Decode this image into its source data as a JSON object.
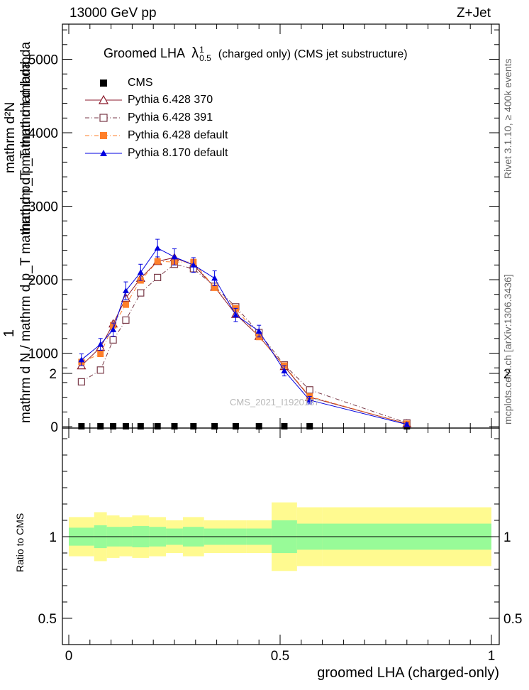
{
  "header": {
    "left": "13000 GeV pp",
    "right": "Z+Jet"
  },
  "side": {
    "rivet": "Rivet 3.1.10, ≥ 400k events",
    "mcplots": "mcplots.cern.ch [arXiv:1306.3436]"
  },
  "watermark": "CMS_2021_I1920187",
  "chart_data": [
    {
      "type": "line",
      "title": "Groomed LHA  λ¹₀.₅  (charged only) (CMS jet substructure)",
      "title_parts": {
        "main": "Groomed LHA",
        "sym": "λ",
        "sup": "1",
        "sub": "0.5",
        "rest": "(charged only) (CMS jet substructure)"
      },
      "ylabel_top": "mathrm d²N",
      "ylabel_top2": "mathrm d p_T mathrm d lambda",
      "ylabel_bottom": "mathrm d N / mathrm d p_T mathrm d p_T mathrm d lambda",
      "ylabel_one": "1",
      "xlim": [
        0,
        1
      ],
      "ylim": [
        0,
        5400
      ],
      "yticks": [
        0,
        1000,
        2000,
        3000,
        4000,
        5000
      ],
      "ytick_labels": [
        "0",
        "1000",
        "2000",
        "3000",
        "4000",
        "5000"
      ],
      "legend_position": "top-left",
      "x": [
        0.03,
        0.075,
        0.105,
        0.135,
        0.17,
        0.21,
        0.25,
        0.295,
        0.345,
        0.395,
        0.45,
        0.51,
        0.57,
        0.8
      ],
      "series": [
        {
          "name": "CMS",
          "color": "#000000",
          "marker": "square-filled",
          "values": [
            5,
            5,
            5,
            5,
            5,
            5,
            5,
            5,
            5,
            5,
            5,
            5,
            5,
            5
          ]
        },
        {
          "name": "Pythia 6.428 370",
          "color": "#8b1a2b",
          "marker": "triangle-open",
          "dash": "solid",
          "values": [
            830,
            1080,
            1400,
            1750,
            2020,
            2250,
            2300,
            2200,
            1900,
            1530,
            1230,
            820,
            400,
            40
          ]
        },
        {
          "name": "Pythia 6.428 391",
          "color": "#7a3a48",
          "marker": "square-open",
          "dash": "dashdot",
          "values": [
            610,
            770,
            1180,
            1450,
            1820,
            2030,
            2210,
            2150,
            1910,
            1630,
            1280,
            840,
            500,
            50
          ]
        },
        {
          "name": "Pythia 6.428 default",
          "color": "#ff7f2a",
          "marker": "square-filled",
          "dash": "dashdot",
          "values": [
            880,
            990,
            1380,
            1660,
            1990,
            2250,
            2240,
            2240,
            1890,
            1610,
            1220,
            830,
            410,
            40
          ]
        },
        {
          "name": "Pythia 8.170 default",
          "color": "#0000e0",
          "marker": "triangle-filled",
          "dash": "solid",
          "values": [
            910,
            1120,
            1320,
            1850,
            2100,
            2430,
            2310,
            2200,
            2020,
            1520,
            1300,
            760,
            360,
            30
          ],
          "errors": [
            80,
            80,
            90,
            120,
            110,
            120,
            110,
            100,
            100,
            90,
            80,
            70,
            50,
            20
          ]
        }
      ]
    },
    {
      "type": "area",
      "ylabel": "Ratio to CMS",
      "xlabel": "groomed LHA (charged-only)",
      "xlim": [
        0,
        1
      ],
      "ylim": [
        0.3,
        2.3
      ],
      "yticks": [
        0.5,
        1,
        2
      ],
      "ytick_labels": [
        "0.5",
        "1",
        "2"
      ],
      "xtick_labels": [
        "0",
        "0.5",
        "1"
      ],
      "bin_edges": [
        0.0,
        0.06,
        0.09,
        0.12,
        0.15,
        0.19,
        0.23,
        0.27,
        0.32,
        0.37,
        0.42,
        0.48,
        0.54,
        0.6,
        1.0
      ],
      "band_inner": [
        [
          0.945,
          1.055
        ],
        [
          0.93,
          1.07
        ],
        [
          0.94,
          1.06
        ],
        [
          0.94,
          1.06
        ],
        [
          0.935,
          1.065
        ],
        [
          0.94,
          1.06
        ],
        [
          0.95,
          1.05
        ],
        [
          0.94,
          1.06
        ],
        [
          0.95,
          1.05
        ],
        [
          0.95,
          1.05
        ],
        [
          0.95,
          1.05
        ],
        [
          0.9,
          1.1
        ],
        [
          0.92,
          1.08
        ],
        [
          0.92,
          1.08
        ]
      ],
      "band_outer": [
        [
          0.88,
          1.12
        ],
        [
          0.85,
          1.15
        ],
        [
          0.87,
          1.13
        ],
        [
          0.88,
          1.12
        ],
        [
          0.87,
          1.13
        ],
        [
          0.88,
          1.12
        ],
        [
          0.9,
          1.1
        ],
        [
          0.88,
          1.12
        ],
        [
          0.9,
          1.1
        ],
        [
          0.9,
          1.1
        ],
        [
          0.9,
          1.1
        ],
        [
          0.79,
          1.21
        ],
        [
          0.82,
          1.18
        ],
        [
          0.82,
          1.18
        ]
      ],
      "band_colors": {
        "inner": "#98fb98",
        "outer": "#fffa90"
      }
    }
  ]
}
